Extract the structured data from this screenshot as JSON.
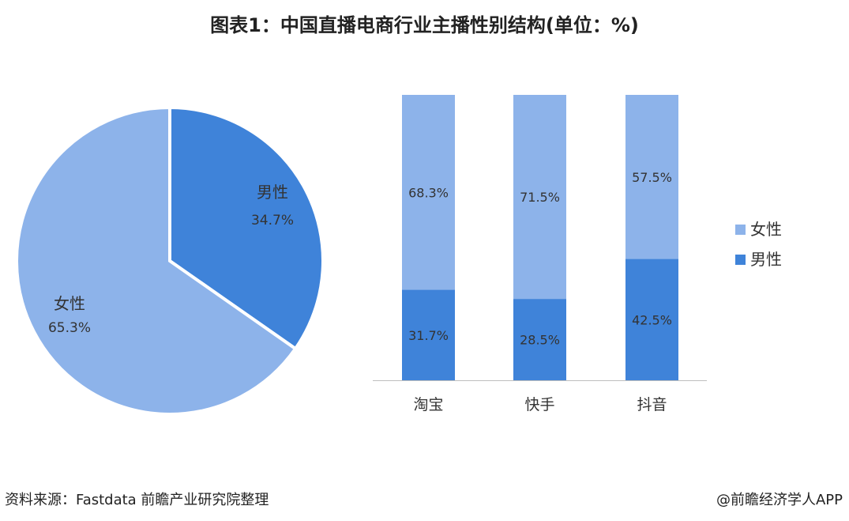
{
  "title": "图表1：中国直播电商行业主播性别结构(单位：%)",
  "footer": {
    "source": "资料来源：Fastdata 前瞻产业研究院整理",
    "credit": "@前瞻经济学人APP"
  },
  "colors": {
    "female": "#8db3ea",
    "male": "#3f83d9"
  },
  "chart_data": [
    {
      "type": "pie",
      "slices": [
        {
          "label": "男性",
          "value": 34.7,
          "display": "34.7%"
        },
        {
          "label": "女性",
          "value": 65.3,
          "display": "65.3%"
        }
      ]
    },
    {
      "type": "bar",
      "stacked": true,
      "categories": [
        "淘宝",
        "快手",
        "抖音"
      ],
      "series": [
        {
          "name": "男性",
          "values": [
            31.7,
            28.5,
            42.5
          ],
          "labels": [
            "31.7%",
            "28.5%",
            "42.5%"
          ]
        },
        {
          "name": "女性",
          "values": [
            68.3,
            71.5,
            57.5
          ],
          "labels": [
            "68.3%",
            "71.5%",
            "57.5%"
          ]
        }
      ],
      "ylim": [
        0,
        100
      ],
      "legend": {
        "position": "right",
        "items": [
          "女性",
          "男性"
        ]
      }
    }
  ]
}
